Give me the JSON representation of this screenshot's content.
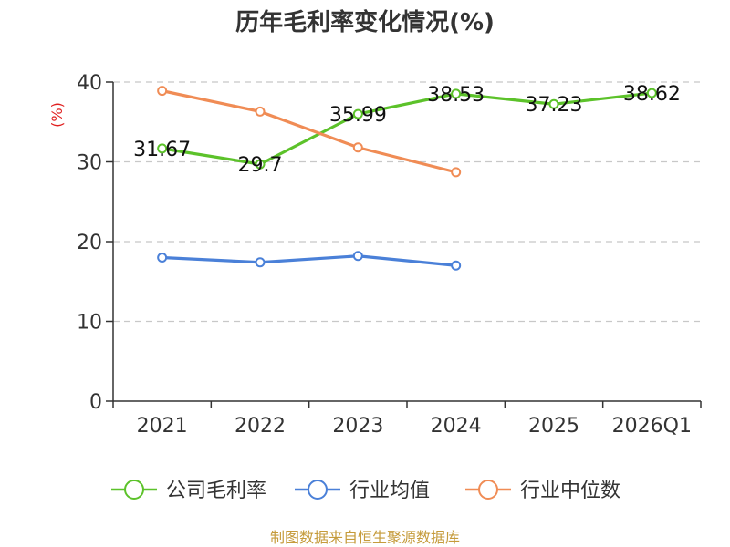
{
  "chart_data": {
    "type": "line",
    "title": "历年毛利率变化情况(%)",
    "ylabel": "(%)",
    "xlabel": "",
    "categories": [
      "2021",
      "2022",
      "2023",
      "2024",
      "2025",
      "2026Q1"
    ],
    "ylim": [
      0,
      40
    ],
    "yticks": [
      0,
      10,
      20,
      30,
      40
    ],
    "grid": "horizontal-dashed",
    "legend_position": "bottom",
    "series": [
      {
        "name": "公司毛利率",
        "color": "#5cc22a",
        "values": [
          31.67,
          29.7,
          35.99,
          38.53,
          37.23,
          38.62
        ],
        "data_labels": [
          "31.67",
          "29.7",
          "35.99",
          "38.53",
          "37.23",
          "38.62"
        ]
      },
      {
        "name": "行业均值",
        "color": "#4a80d8",
        "values": [
          18.0,
          17.4,
          18.2,
          17.0,
          null,
          null
        ]
      },
      {
        "name": "行业中位数",
        "color": "#f08c55",
        "values": [
          38.9,
          36.3,
          31.8,
          28.7,
          null,
          null
        ]
      }
    ]
  },
  "source": "制图数据来自恒生聚源数据库"
}
